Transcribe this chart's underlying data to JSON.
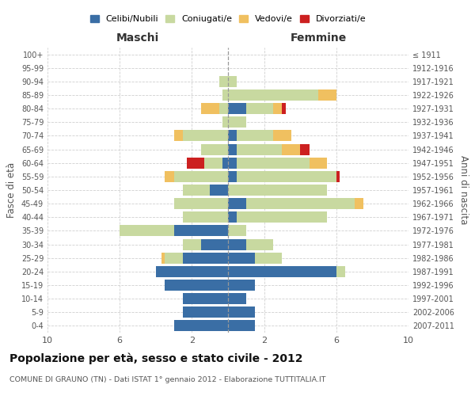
{
  "age_groups": [
    "0-4",
    "5-9",
    "10-14",
    "15-19",
    "20-24",
    "25-29",
    "30-34",
    "35-39",
    "40-44",
    "45-49",
    "50-54",
    "55-59",
    "60-64",
    "65-69",
    "70-74",
    "75-79",
    "80-84",
    "85-89",
    "90-94",
    "95-99",
    "100+"
  ],
  "birth_years": [
    "2007-2011",
    "2002-2006",
    "1997-2001",
    "1992-1996",
    "1987-1991",
    "1982-1986",
    "1977-1981",
    "1972-1976",
    "1967-1971",
    "1962-1966",
    "1957-1961",
    "1952-1956",
    "1947-1951",
    "1942-1946",
    "1937-1941",
    "1932-1936",
    "1927-1931",
    "1922-1926",
    "1917-1921",
    "1912-1916",
    "≤ 1911"
  ],
  "males": {
    "celibi": [
      3.0,
      2.5,
      2.5,
      3.5,
      4.0,
      2.5,
      1.5,
      3.0,
      0.0,
      0.0,
      1.0,
      0.0,
      0.3,
      0.0,
      0.0,
      0.0,
      0.0,
      0.0,
      0.0,
      0.0,
      0.0
    ],
    "coniugati": [
      0.0,
      0.0,
      0.0,
      0.0,
      0.0,
      1.0,
      1.0,
      3.0,
      2.5,
      3.0,
      1.5,
      3.0,
      1.0,
      1.5,
      2.5,
      0.3,
      0.5,
      0.3,
      0.5,
      0.0,
      0.0
    ],
    "vedovi": [
      0.0,
      0.0,
      0.0,
      0.0,
      0.0,
      0.2,
      0.0,
      0.0,
      0.0,
      0.0,
      0.0,
      0.5,
      0.0,
      0.0,
      0.5,
      0.0,
      1.0,
      0.0,
      0.0,
      0.0,
      0.0
    ],
    "divorziati": [
      0.0,
      0.0,
      0.0,
      0.0,
      0.0,
      0.0,
      0.0,
      0.0,
      0.0,
      0.0,
      0.0,
      0.0,
      1.0,
      0.0,
      0.0,
      0.0,
      0.0,
      0.0,
      0.0,
      0.0,
      0.0
    ]
  },
  "females": {
    "celibi": [
      1.5,
      1.5,
      1.0,
      1.5,
      6.0,
      1.5,
      1.0,
      0.0,
      0.5,
      1.0,
      0.0,
      0.5,
      0.5,
      0.5,
      0.5,
      0.0,
      1.0,
      0.0,
      0.0,
      0.0,
      0.0
    ],
    "coniugati": [
      0.0,
      0.0,
      0.0,
      0.0,
      0.5,
      1.5,
      1.5,
      1.0,
      5.0,
      6.0,
      5.5,
      5.5,
      4.0,
      2.5,
      2.0,
      1.0,
      1.5,
      5.0,
      0.5,
      0.0,
      0.0
    ],
    "vedovi": [
      0.0,
      0.0,
      0.0,
      0.0,
      0.0,
      0.0,
      0.0,
      0.0,
      0.0,
      0.5,
      0.0,
      0.0,
      1.0,
      1.0,
      1.0,
      0.0,
      0.5,
      1.0,
      0.0,
      0.0,
      0.0
    ],
    "divorziati": [
      0.0,
      0.0,
      0.0,
      0.0,
      0.0,
      0.0,
      0.0,
      0.0,
      0.0,
      0.0,
      0.0,
      0.2,
      0.0,
      0.5,
      0.0,
      0.0,
      0.2,
      0.0,
      0.0,
      0.0,
      0.0
    ]
  },
  "colors": {
    "celibi": "#3a6ea5",
    "coniugati": "#c8d9a0",
    "vedovi": "#f0c060",
    "divorziati": "#cc2020"
  },
  "legend_labels": [
    "Celibi/Nubili",
    "Coniugati/e",
    "Vedovi/e",
    "Divorziati/e"
  ],
  "title": "Popolazione per età, sesso e stato civile - 2012",
  "subtitle": "COMUNE DI GRAUNO (TN) - Dati ISTAT 1° gennaio 2012 - Elaborazione TUTTITALIA.IT",
  "xlabel_left": "Maschi",
  "xlabel_right": "Femmine",
  "ylabel_left": "Fasce di età",
  "ylabel_right": "Anni di nascita",
  "xlim": 10,
  "bg_color": "#ffffff",
  "grid_color": "#d0d0d0"
}
